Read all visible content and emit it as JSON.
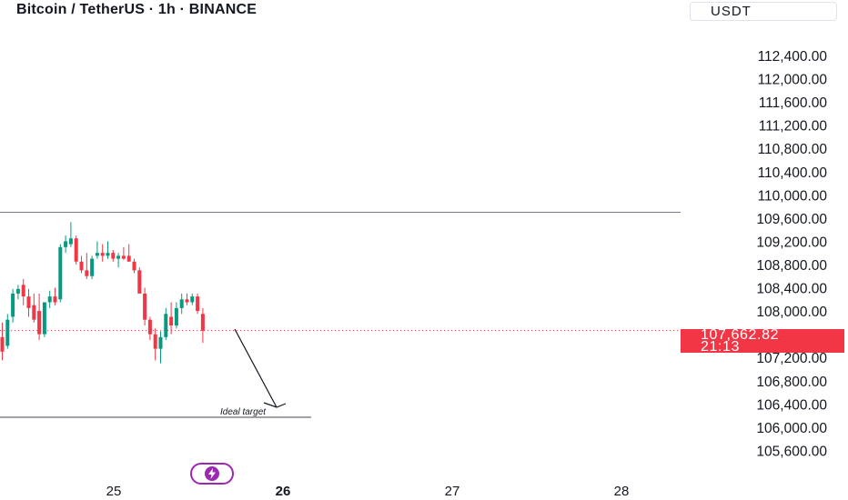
{
  "header": {
    "title": "Bitcoin / TetherUS · 1h · BINANCE",
    "currency": "USDT"
  },
  "price_tag": {
    "price": "107,662.82",
    "countdown": "21:13"
  },
  "annotation": {
    "text": "Ideal target"
  },
  "icons": {
    "event": "lightning-icon"
  },
  "colors": {
    "up": "#089981",
    "down": "#f23645",
    "last_price": "#f23645",
    "event_badge": "#9c27b0"
  },
  "chart_data": {
    "type": "candlestick",
    "title": "Bitcoin / TetherUS · 1h · BINANCE",
    "x_ticks": [
      "25",
      "26",
      "27",
      "28"
    ],
    "y_ticks": [
      "112,400.00",
      "112,000.00",
      "111,600.00",
      "111,200.00",
      "110,800.00",
      "110,400.00",
      "110,000.00",
      "109,600.00",
      "109,200.00",
      "108,800.00",
      "108,400.00",
      "108,000.00",
      "107,200.00",
      "106,800.00",
      "106,400.00",
      "106,000.00",
      "105,600.00"
    ],
    "y_range": [
      105450,
      112650
    ],
    "last_price": 107662.82,
    "horizontal_levels": [
      {
        "price": 109700
      },
      {
        "price": 106170,
        "label": "Ideal target"
      }
    ],
    "candles": [
      {
        "o": 107550,
        "h": 107800,
        "l": 107150,
        "c": 107300
      },
      {
        "o": 107400,
        "h": 107950,
        "l": 107350,
        "c": 107850
      },
      {
        "o": 107900,
        "h": 108380,
        "l": 107800,
        "c": 108300
      },
      {
        "o": 108300,
        "h": 108450,
        "l": 108200,
        "c": 108380
      },
      {
        "o": 108450,
        "h": 108550,
        "l": 108100,
        "c": 108250
      },
      {
        "o": 108250,
        "h": 108380,
        "l": 107900,
        "c": 108050
      },
      {
        "o": 108100,
        "h": 108300,
        "l": 107800,
        "c": 107850
      },
      {
        "o": 108000,
        "h": 108300,
        "l": 107500,
        "c": 107600
      },
      {
        "o": 107600,
        "h": 108150,
        "l": 107550,
        "c": 108150
      },
      {
        "o": 108150,
        "h": 108350,
        "l": 108050,
        "c": 108250
      },
      {
        "o": 108250,
        "h": 108400,
        "l": 108100,
        "c": 108150
      },
      {
        "o": 108200,
        "h": 109150,
        "l": 108150,
        "c": 109100
      },
      {
        "o": 109100,
        "h": 109300,
        "l": 109000,
        "c": 109200
      },
      {
        "o": 109150,
        "h": 109530,
        "l": 109100,
        "c": 109250
      },
      {
        "o": 109250,
        "h": 109300,
        "l": 108800,
        "c": 108850
      },
      {
        "o": 108850,
        "h": 108950,
        "l": 108650,
        "c": 108700
      },
      {
        "o": 108700,
        "h": 109000,
        "l": 108550,
        "c": 108600
      },
      {
        "o": 108600,
        "h": 108950,
        "l": 108550,
        "c": 108900
      },
      {
        "o": 108950,
        "h": 109200,
        "l": 108900,
        "c": 109000
      },
      {
        "o": 109000,
        "h": 109150,
        "l": 108850,
        "c": 108950
      },
      {
        "o": 108950,
        "h": 109200,
        "l": 108900,
        "c": 109000
      },
      {
        "o": 109000,
        "h": 109050,
        "l": 108850,
        "c": 108900
      },
      {
        "o": 108900,
        "h": 109000,
        "l": 108750,
        "c": 108950
      },
      {
        "o": 108950,
        "h": 109100,
        "l": 108880,
        "c": 108900
      },
      {
        "o": 108950,
        "h": 109150,
        "l": 108850,
        "c": 108850
      },
      {
        "o": 108850,
        "h": 108900,
        "l": 108650,
        "c": 108700
      },
      {
        "o": 108700,
        "h": 108750,
        "l": 108300,
        "c": 108300
      },
      {
        "o": 108300,
        "h": 108400,
        "l": 107750,
        "c": 107850
      },
      {
        "o": 107850,
        "h": 107900,
        "l": 107500,
        "c": 107600
      },
      {
        "o": 107600,
        "h": 107700,
        "l": 107150,
        "c": 107350
      },
      {
        "o": 107350,
        "h": 107650,
        "l": 107100,
        "c": 107550
      },
      {
        "o": 107550,
        "h": 108050,
        "l": 107500,
        "c": 107950
      },
      {
        "o": 107900,
        "h": 108150,
        "l": 107600,
        "c": 107750
      },
      {
        "o": 107750,
        "h": 108150,
        "l": 107700,
        "c": 108050
      },
      {
        "o": 108050,
        "h": 108300,
        "l": 107950,
        "c": 108200
      },
      {
        "o": 108200,
        "h": 108300,
        "l": 108100,
        "c": 108150
      },
      {
        "o": 108150,
        "h": 108300,
        "l": 108100,
        "c": 108250
      },
      {
        "o": 108250,
        "h": 108300,
        "l": 107950,
        "c": 108000
      },
      {
        "o": 107950,
        "h": 108050,
        "l": 107450,
        "c": 107660
      }
    ]
  }
}
